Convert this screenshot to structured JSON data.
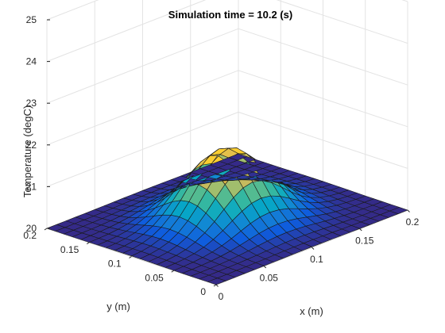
{
  "chart_data": {
    "type": "surface",
    "title": "Simulation time = 10.2 (s)",
    "xlabel": "x (m)",
    "ylabel": "y (m)",
    "zlabel": "Temperature (degC)",
    "xlim": [
      0,
      0.2
    ],
    "ylim": [
      0,
      0.2
    ],
    "zlim": [
      20,
      25
    ],
    "xticks": [
      "0",
      "0.05",
      "0.1",
      "0.15",
      "0.2"
    ],
    "yticks": [
      "0",
      "0.05",
      "0.1",
      "0.15",
      "0.2"
    ],
    "zticks": [
      "20",
      "21",
      "22",
      "23",
      "24",
      "25"
    ],
    "grid": true,
    "colormap": "parula",
    "colormap_stops": [
      "#352a87",
      "#0f5cdd",
      "#1481d6",
      "#06a7c6",
      "#38b99e",
      "#92bf73",
      "#d9ba56",
      "#fcce2e",
      "#f9fb0e"
    ],
    "surface": {
      "x_min": 0,
      "x_max": 0.2,
      "y_min": 0,
      "y_max": 0.2,
      "resolution": 21,
      "base_temperature": 20,
      "peak_temperature": 21.7,
      "peak_x": 0.1,
      "peak_y": 0.1,
      "mesh_edge_color": "#1a1a1a"
    }
  }
}
